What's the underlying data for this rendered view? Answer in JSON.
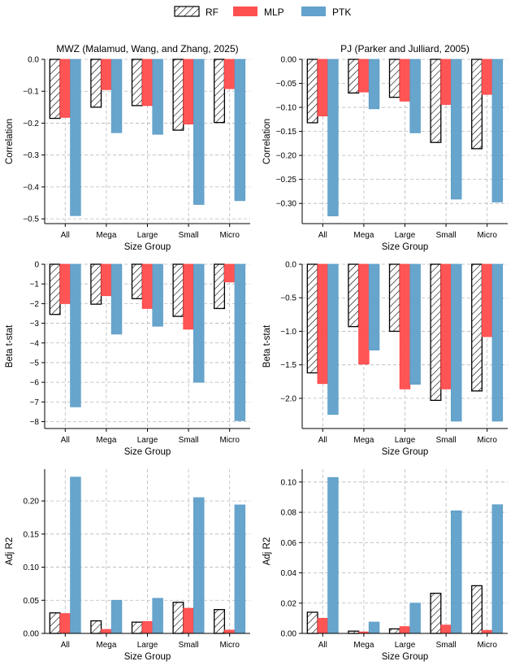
{
  "legend": {
    "items": [
      {
        "name": "RF",
        "color": "#ffffff",
        "pattern": "hatch"
      },
      {
        "name": "MLP",
        "color": "#ff4747",
        "pattern": "solid"
      },
      {
        "name": "PTK",
        "color": "#5b9dc9",
        "pattern": "solid"
      }
    ]
  },
  "chart_data": [
    {
      "type": "bar",
      "title": "MWZ (Malamud, Wang, and Zhang, 2025)",
      "xlabel": "Size Group",
      "ylabel": "Correlation",
      "categories": [
        "All",
        "Mega",
        "Large",
        "Small",
        "Micro"
      ],
      "ylim": [
        -0.515,
        0
      ],
      "yticks": [
        0.0,
        -0.1,
        -0.2,
        -0.3,
        -0.4,
        -0.5
      ],
      "ytick_labels": [
        "0.0",
        "−0.1",
        "−0.2",
        "−0.3",
        "−0.4",
        "−0.5"
      ],
      "grid": true,
      "series": [
        {
          "name": "RF",
          "values": [
            -0.185,
            -0.15,
            -0.145,
            -0.222,
            -0.198
          ]
        },
        {
          "name": "MLP",
          "values": [
            -0.182,
            -0.095,
            -0.145,
            -0.203,
            -0.092
          ]
        },
        {
          "name": "PTK",
          "values": [
            -0.49,
            -0.23,
            -0.235,
            -0.455,
            -0.443
          ]
        }
      ]
    },
    {
      "type": "bar",
      "title": "PJ (Parker and Julliard, 2005)",
      "xlabel": "Size Group",
      "ylabel": "Correlation",
      "categories": [
        "All",
        "Mega",
        "Large",
        "Small",
        "Micro"
      ],
      "ylim": [
        -0.342,
        0
      ],
      "yticks": [
        0.0,
        -0.05,
        -0.1,
        -0.15,
        -0.2,
        -0.25,
        -0.3
      ],
      "ytick_labels": [
        "0.00",
        "−0.05",
        "−0.10",
        "−0.15",
        "−0.20",
        "−0.25",
        "−0.30"
      ],
      "grid": true,
      "series": [
        {
          "name": "RF",
          "values": [
            -0.132,
            -0.07,
            -0.079,
            -0.173,
            -0.186
          ]
        },
        {
          "name": "MLP",
          "values": [
            -0.118,
            -0.068,
            -0.087,
            -0.094,
            -0.073
          ]
        },
        {
          "name": "PTK",
          "values": [
            -0.326,
            -0.103,
            -0.153,
            -0.291,
            -0.297
          ]
        }
      ]
    },
    {
      "type": "bar",
      "title": "",
      "xlabel": "Size Group",
      "ylabel": "Beta t-stat",
      "categories": [
        "All",
        "Mega",
        "Large",
        "Small",
        "Micro"
      ],
      "ylim": [
        -8.35,
        0
      ],
      "yticks": [
        0,
        -1,
        -2,
        -3,
        -4,
        -5,
        -6,
        -7,
        -8
      ],
      "ytick_labels": [
        "0",
        "−1",
        "−2",
        "−3",
        "−4",
        "−5",
        "−6",
        "−7",
        "−8"
      ],
      "grid": true,
      "series": [
        {
          "name": "RF",
          "values": [
            -2.55,
            -2.03,
            -1.75,
            -2.65,
            -2.25
          ]
        },
        {
          "name": "MLP",
          "values": [
            -2.0,
            -1.6,
            -2.25,
            -3.3,
            -0.9
          ]
        },
        {
          "name": "PTK",
          "values": [
            -7.25,
            -3.55,
            -3.15,
            -6.0,
            -7.95
          ]
        }
      ]
    },
    {
      "type": "bar",
      "title": "",
      "xlabel": "Size Group",
      "ylabel": "Beta t-stat",
      "categories": [
        "All",
        "Mega",
        "Large",
        "Small",
        "Micro"
      ],
      "ylim": [
        -2.45,
        0
      ],
      "yticks": [
        0.0,
        -0.5,
        -1.0,
        -1.5,
        -2.0
      ],
      "ytick_labels": [
        "0.0",
        "−0.5",
        "−1.0",
        "−1.5",
        "−2.0"
      ],
      "grid": true,
      "series": [
        {
          "name": "RF",
          "values": [
            -1.62,
            -0.93,
            -1.0,
            -2.03,
            -1.89
          ]
        },
        {
          "name": "MLP",
          "values": [
            -1.78,
            -1.49,
            -1.86,
            -1.86,
            -1.08
          ]
        },
        {
          "name": "PTK",
          "values": [
            -2.24,
            -1.28,
            -1.79,
            -2.34,
            -2.34
          ]
        }
      ]
    },
    {
      "type": "bar",
      "title": "",
      "xlabel": "Size Group",
      "ylabel": "Adj R2",
      "categories": [
        "All",
        "Mega",
        "Large",
        "Small",
        "Micro"
      ],
      "ylim": [
        0,
        0.248
      ],
      "yticks": [
        0.0,
        0.05,
        0.1,
        0.15,
        0.2
      ],
      "ytick_labels": [
        "0.00",
        "0.05",
        "0.10",
        "0.15",
        "0.20"
      ],
      "grid": true,
      "series": [
        {
          "name": "RF",
          "values": [
            0.031,
            0.019,
            0.017,
            0.047,
            0.036
          ]
        },
        {
          "name": "MLP",
          "values": [
            0.03,
            0.006,
            0.018,
            0.038,
            0.005
          ]
        },
        {
          "name": "PTK",
          "values": [
            0.236,
            0.05,
            0.053,
            0.205,
            0.194
          ]
        }
      ]
    },
    {
      "type": "bar",
      "title": "",
      "xlabel": "Size Group",
      "ylabel": "Adj R2",
      "categories": [
        "All",
        "Mega",
        "Large",
        "Small",
        "Micro"
      ],
      "ylim": [
        0,
        0.1085
      ],
      "yticks": [
        0.0,
        0.02,
        0.04,
        0.06,
        0.08,
        0.1
      ],
      "ytick_labels": [
        "0.00",
        "0.02",
        "0.04",
        "0.06",
        "0.08",
        "0.10"
      ],
      "grid": true,
      "series": [
        {
          "name": "RF",
          "values": [
            0.014,
            0.0015,
            0.003,
            0.0265,
            0.0315
          ]
        },
        {
          "name": "MLP",
          "values": [
            0.01,
            0.001,
            0.0045,
            0.0055,
            0.002
          ]
        },
        {
          "name": "PTK",
          "values": [
            0.103,
            0.0075,
            0.02,
            0.081,
            0.085
          ]
        }
      ]
    }
  ]
}
